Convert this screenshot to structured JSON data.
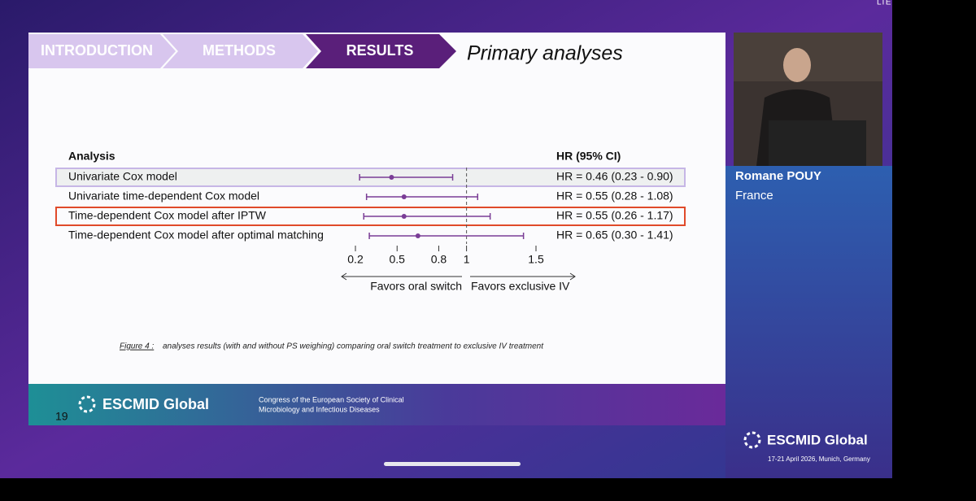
{
  "status_bar": {
    "network": "LTE"
  },
  "slide": {
    "nav": [
      "INTRODUCTION",
      "METHODS",
      "RESULTS"
    ],
    "title": "Primary analyses",
    "caption_label": "Figure 4 :",
    "caption": "analyses results (with and without PS weighing) comparing oral switch treatment to exclusive IV treatment",
    "footer": {
      "brand": "ESCMID Global",
      "line1": "Congress of the European Society of Clinical",
      "line2": "Microbiology and Infectious Diseases",
      "page": "19"
    }
  },
  "speaker": {
    "name": "Romane POUY",
    "country": "France"
  },
  "event": {
    "brand": "ESCMID Global",
    "dates": "17-21 April 2026, Munich, Germany"
  },
  "chart_data": {
    "type": "forest",
    "label_header": "Analysis",
    "value_header": "HR (95% CI)",
    "categories": [
      "Univariate Cox model",
      "Univariate time-dependent Cox model",
      "Time-dependent Cox model after IPTW",
      "Time-dependent Cox model after optimal matching"
    ],
    "values": [
      0.46,
      0.55,
      0.55,
      0.65
    ],
    "lower": [
      0.23,
      0.28,
      0.26,
      0.3
    ],
    "upper": [
      0.9,
      1.08,
      1.17,
      1.41
    ],
    "value_labels": [
      "HR = 0.46 (0.23 - 0.90)",
      "HR = 0.55 (0.28 - 1.08)",
      "HR = 0.55 (0.26 - 1.17)",
      "HR = 0.65 (0.30 - 1.41)"
    ],
    "reference": 1,
    "xlim": [
      0.2,
      1.5
    ],
    "xticks": [
      0.2,
      0.5,
      0.8,
      1,
      1.5
    ],
    "left_annotation": "Favors oral switch",
    "right_annotation": "Favors exclusive IV",
    "color": "#7a3d96"
  }
}
